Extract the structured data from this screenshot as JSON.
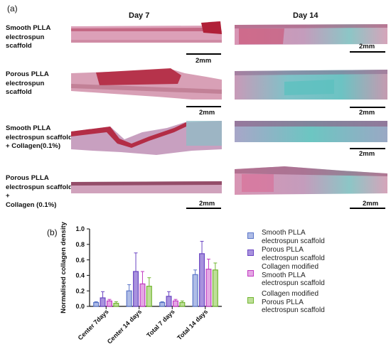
{
  "panel_a": {
    "tag": "(a)",
    "day_headers": [
      "Day 7",
      "Day 14"
    ],
    "row_labels": [
      [
        "Smooth PLLA",
        "electrospun",
        "scaffold"
      ],
      [
        "Porous PLLA",
        "electrospun",
        "scaffold"
      ],
      [
        "Smooth PLLA",
        "electrospun scaffold",
        "+ Collagen(0.1%)"
      ],
      [
        "Porous PLLA",
        "electrospun scaffold +",
        "Collagen (0.1%)"
      ]
    ],
    "scale_label": "2mm",
    "stain_colors": {
      "tissue_pink": "#d89ab2",
      "scaffold_red": "#b02038",
      "collagen_teal": "#6cc3c3"
    }
  },
  "panel_b": {
    "tag": "(b)",
    "legend": [
      [
        "Smooth PLLA",
        "electrospun scaffold"
      ],
      [
        "Porous PLLA",
        "electrospun scaffold"
      ],
      [
        "Collagen modified",
        "Smooth PLLA",
        "electrospun scaffold"
      ],
      [
        "Collagen modified",
        "Porous PLLA",
        "electrospun scaffold"
      ]
    ]
  },
  "chart_data": {
    "type": "bar",
    "ylabel": "Normalised collagen density",
    "xlabel": "",
    "ylim": [
      0,
      1.0
    ],
    "yticks": [
      "0.0",
      "0.2",
      "0.4",
      "0.6",
      "0.8",
      "1.0"
    ],
    "categories": [
      "Center 7days",
      "Center 14 days",
      "Total 7 days",
      "Total 14 days"
    ],
    "series": [
      {
        "name": "Smooth PLLA electrospun scaffold",
        "color": "#5b76c8",
        "fill": "#aebce6",
        "values": [
          0.05,
          0.2,
          0.05,
          0.41
        ],
        "errors": [
          0.01,
          0.08,
          0.01,
          0.06
        ]
      },
      {
        "name": "Porous PLLA electrospun scaffold",
        "color": "#6a45c2",
        "fill": "#a892de",
        "values": [
          0.11,
          0.45,
          0.13,
          0.68
        ],
        "errors": [
          0.08,
          0.24,
          0.06,
          0.16
        ]
      },
      {
        "name": "Collagen modified Smooth PLLA electrospun scaffold",
        "color": "#c23bc2",
        "fill": "#e4a7e4",
        "values": [
          0.07,
          0.29,
          0.07,
          0.48
        ],
        "errors": [
          0.02,
          0.16,
          0.02,
          0.13
        ]
      },
      {
        "name": "Collagen modified Porous PLLA electrospun scaffold",
        "color": "#72b632",
        "fill": "#bedf98",
        "values": [
          0.04,
          0.26,
          0.05,
          0.47
        ],
        "errors": [
          0.02,
          0.11,
          0.02,
          0.09
        ]
      }
    ]
  }
}
